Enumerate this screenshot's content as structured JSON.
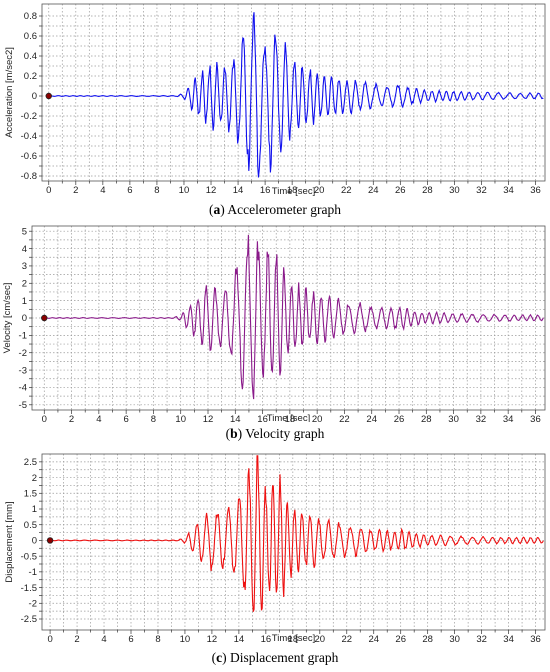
{
  "chart_data": [
    {
      "type": "line",
      "caption_letter": "a",
      "caption_text": "Accelerometer graph",
      "ylabel": "Acceleration [m/sec2]",
      "xlabel": "Time [sec]",
      "series": [
        {
          "color": "#1010ee",
          "amplitude_peak": 0.88,
          "trough": -0.82
        }
      ],
      "xlim": [
        -0.5,
        36.7
      ],
      "ylim": [
        -0.85,
        0.92
      ],
      "x_ticks": [
        0,
        1,
        2,
        3,
        4,
        5,
        6,
        7,
        8,
        9,
        10,
        11,
        12,
        13,
        14,
        15,
        16,
        17,
        18,
        19,
        20,
        21,
        22,
        23,
        24,
        25,
        26,
        27,
        28,
        29,
        30,
        31,
        32,
        33,
        34,
        35,
        36
      ],
      "x_tick_labels": [
        "0",
        "2",
        "4",
        "6",
        "8",
        "10",
        "12",
        "14",
        "16",
        "18",
        "20",
        "22",
        "24",
        "26",
        "28",
        "30",
        "32",
        "34",
        "36"
      ],
      "y_ticks": [
        -0.8,
        -0.7,
        -0.6,
        -0.5,
        -0.4,
        -0.3,
        -0.2,
        -0.1,
        0,
        0.1,
        0.2,
        0.3,
        0.4,
        0.5,
        0.6,
        0.7,
        0.8
      ],
      "y_tick_labels": [
        "-0.8",
        "-0.6",
        "-0.4",
        "-0.2",
        "0",
        "0.2",
        "0.4",
        "0.6",
        "0.8"
      ],
      "grid": true
    },
    {
      "type": "line",
      "caption_letter": "b",
      "caption_text": "Velocity graph",
      "ylabel": "Velocity [cm/sec]",
      "xlabel": "Time [sec]",
      "series": [
        {
          "color": "#8a1a8a",
          "amplitude_peak": 5.1,
          "trough": -5.2
        }
      ],
      "xlim": [
        -0.9,
        36.7
      ],
      "ylim": [
        -5.3,
        5.3
      ],
      "x_ticks": [
        0,
        1,
        2,
        3,
        4,
        5,
        6,
        7,
        8,
        9,
        10,
        11,
        12,
        13,
        14,
        15,
        16,
        17,
        18,
        19,
        20,
        21,
        22,
        23,
        24,
        25,
        26,
        27,
        28,
        29,
        30,
        31,
        32,
        33,
        34,
        35,
        36
      ],
      "x_tick_labels": [
        "0",
        "2",
        "4",
        "6",
        "8",
        "10",
        "12",
        "14",
        "16",
        "18",
        "20",
        "22",
        "24",
        "26",
        "28",
        "30",
        "32",
        "34",
        "36"
      ],
      "y_ticks": [
        -5,
        -4.5,
        -4,
        -3.5,
        -3,
        -2.5,
        -2,
        -1.5,
        -1,
        -0.5,
        0,
        0.5,
        1,
        1.5,
        2,
        2.5,
        3,
        3.5,
        4,
        4.5,
        5
      ],
      "y_tick_labels": [
        "-5",
        "-4",
        "-3",
        "-2",
        "-1",
        "0",
        "1",
        "2",
        "3",
        "4",
        "5"
      ],
      "grid": true
    },
    {
      "type": "line",
      "caption_letter": "c",
      "caption_text": "Displacement graph",
      "ylabel": "Displacement [mm]",
      "xlabel": "Time [sec]",
      "series": [
        {
          "color": "#ee1010",
          "amplitude_peak": 2.65,
          "trough": -2.8
        }
      ],
      "xlim": [
        -0.6,
        36.7
      ],
      "ylim": [
        -2.85,
        2.75
      ],
      "x_ticks": [
        0,
        1,
        2,
        3,
        4,
        5,
        6,
        7,
        8,
        9,
        10,
        11,
        12,
        13,
        14,
        15,
        16,
        17,
        18,
        19,
        20,
        21,
        22,
        23,
        24,
        25,
        26,
        27,
        28,
        29,
        30,
        31,
        32,
        33,
        34,
        35,
        36
      ],
      "x_tick_labels": [
        "0",
        "2",
        "4",
        "6",
        "8",
        "10",
        "12",
        "14",
        "16",
        "18",
        "20",
        "22",
        "24",
        "26",
        "28",
        "30",
        "32",
        "34",
        "36"
      ],
      "y_ticks": [
        -2.5,
        -2.25,
        -2,
        -1.75,
        -1.5,
        -1.25,
        -1,
        -0.75,
        -0.5,
        -0.25,
        0,
        0.25,
        0.5,
        0.75,
        1,
        1.25,
        1.5,
        1.75,
        2,
        2.25,
        2.5
      ],
      "y_tick_labels": [
        "-2.5",
        "-2",
        "-1.5",
        "-1",
        "-0.5",
        "0",
        "0.5",
        "1",
        "1.5",
        "2",
        "2.5"
      ],
      "grid": true
    }
  ]
}
